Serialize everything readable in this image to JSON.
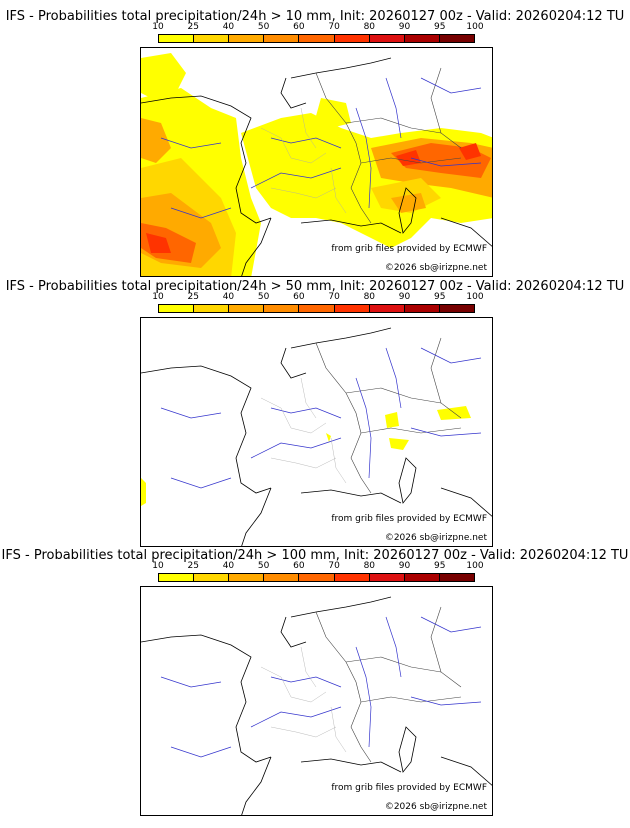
{
  "legend": {
    "ticks": [
      "10",
      "25",
      "40",
      "50",
      "60",
      "70",
      "80",
      "90",
      "95",
      "100"
    ],
    "colors": [
      "#ffff00",
      "#ffd700",
      "#ffaa00",
      "#ff8c00",
      "#ff6600",
      "#ff3300",
      "#dd1111",
      "#aa0000",
      "#770000"
    ]
  },
  "credits": {
    "source": "from grib files provided by ECMWF",
    "copyright": "©2026 sb@irizpne.net"
  },
  "panels": [
    {
      "title": "IFS - Probabilities total precipitation/24h > 10 mm, Init: 20260127 00z - Valid: 20260204:12 TU"
    },
    {
      "title": "IFS - Probabilities total precipitation/24h > 50 mm, Init: 20260127 00z - Valid: 20260204:12 TU"
    },
    {
      "title": "IFS - Probabilities total precipitation/24h > 100 mm, Init: 20260127 00z - Valid: 20260204:12 TU"
    }
  ]
}
